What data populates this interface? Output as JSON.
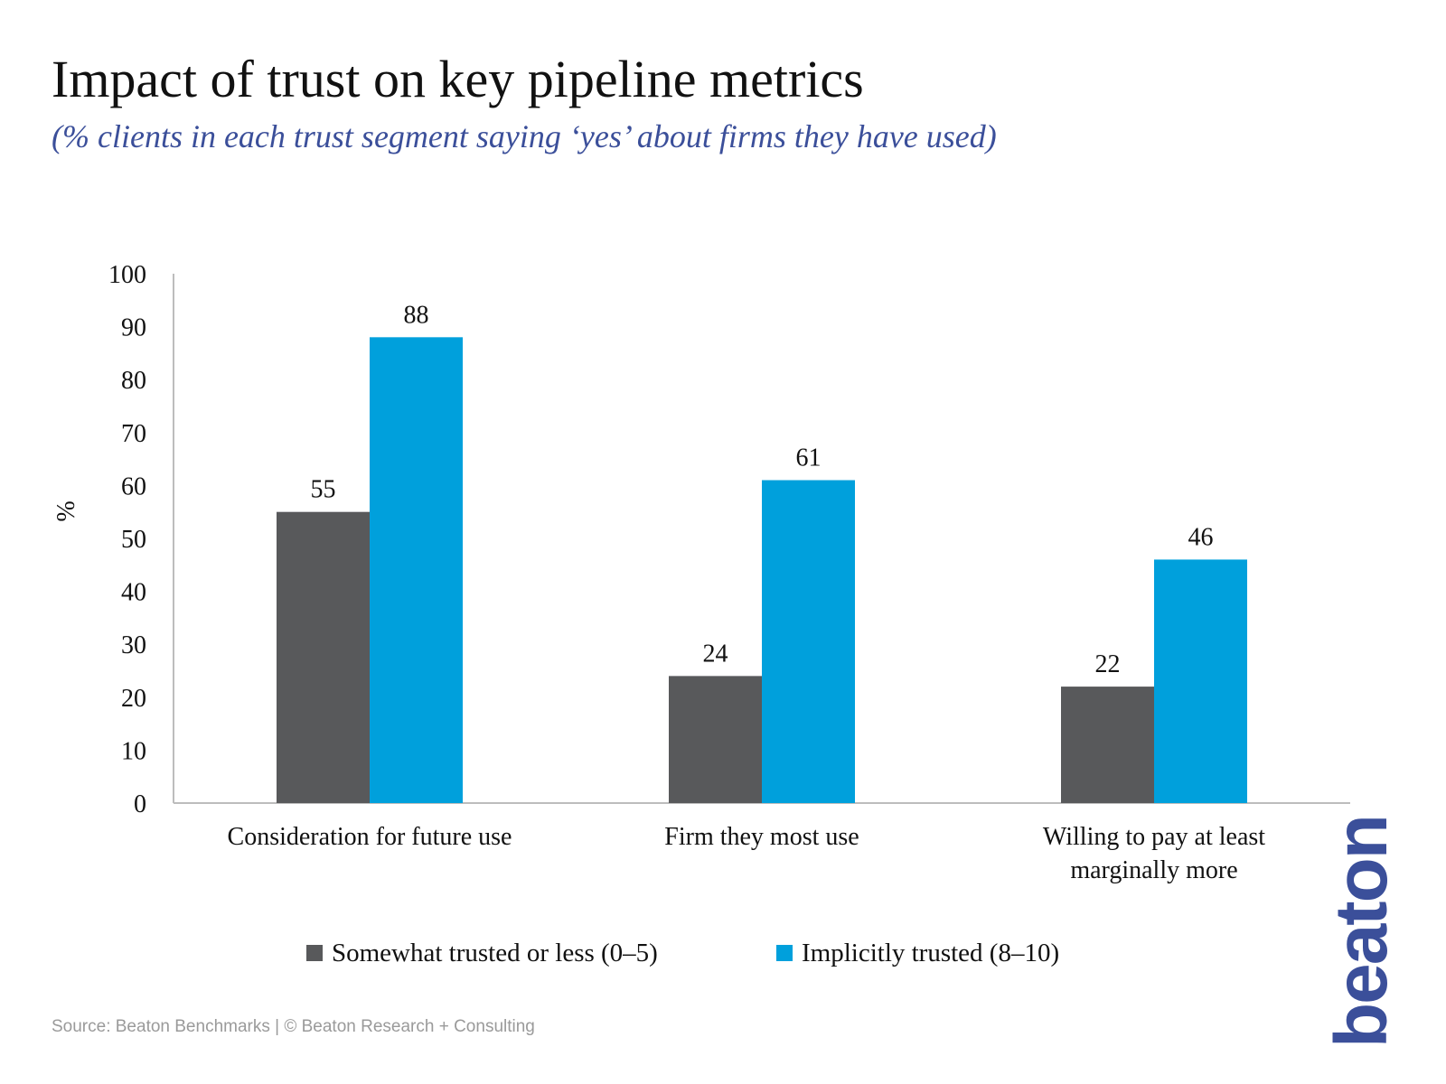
{
  "title": "Impact of trust on key pipeline metrics",
  "subtitle": "(% clients in each trust segment saying ‘yes’ about firms they have used)",
  "source": "Source: Beaton Benchmarks | © Beaton Research + Consulting",
  "logo": {
    "text": "beaton",
    "color": "#3b4f9a"
  },
  "colors": {
    "title": "#111111",
    "subtitle": "#3b4f9a",
    "axis": "#bdbdbd",
    "text": "#111111",
    "source": "#9a9a9a"
  },
  "chart_data": {
    "type": "bar",
    "title": "Impact of trust on key pipeline metrics",
    "subtitle": "(% clients in each trust segment saying ‘yes’ about firms they have used)",
    "ylabel": "%",
    "xlabel": "",
    "ylim": [
      0,
      100
    ],
    "yticks": [
      0,
      10,
      20,
      30,
      40,
      50,
      60,
      70,
      80,
      90,
      100
    ],
    "grid": false,
    "legend": "bottom",
    "categories": [
      [
        "Consideration for future use"
      ],
      [
        "Firm they most use"
      ],
      [
        "Willing to pay at least",
        "marginally more"
      ]
    ],
    "series": [
      {
        "name": "Somewhat trusted or less (0–5)",
        "color": "#58595b",
        "values": [
          55,
          24,
          22
        ]
      },
      {
        "name": "Implicitly trusted (8–10)",
        "color": "#00a0dc",
        "values": [
          88,
          61,
          46
        ]
      }
    ]
  }
}
